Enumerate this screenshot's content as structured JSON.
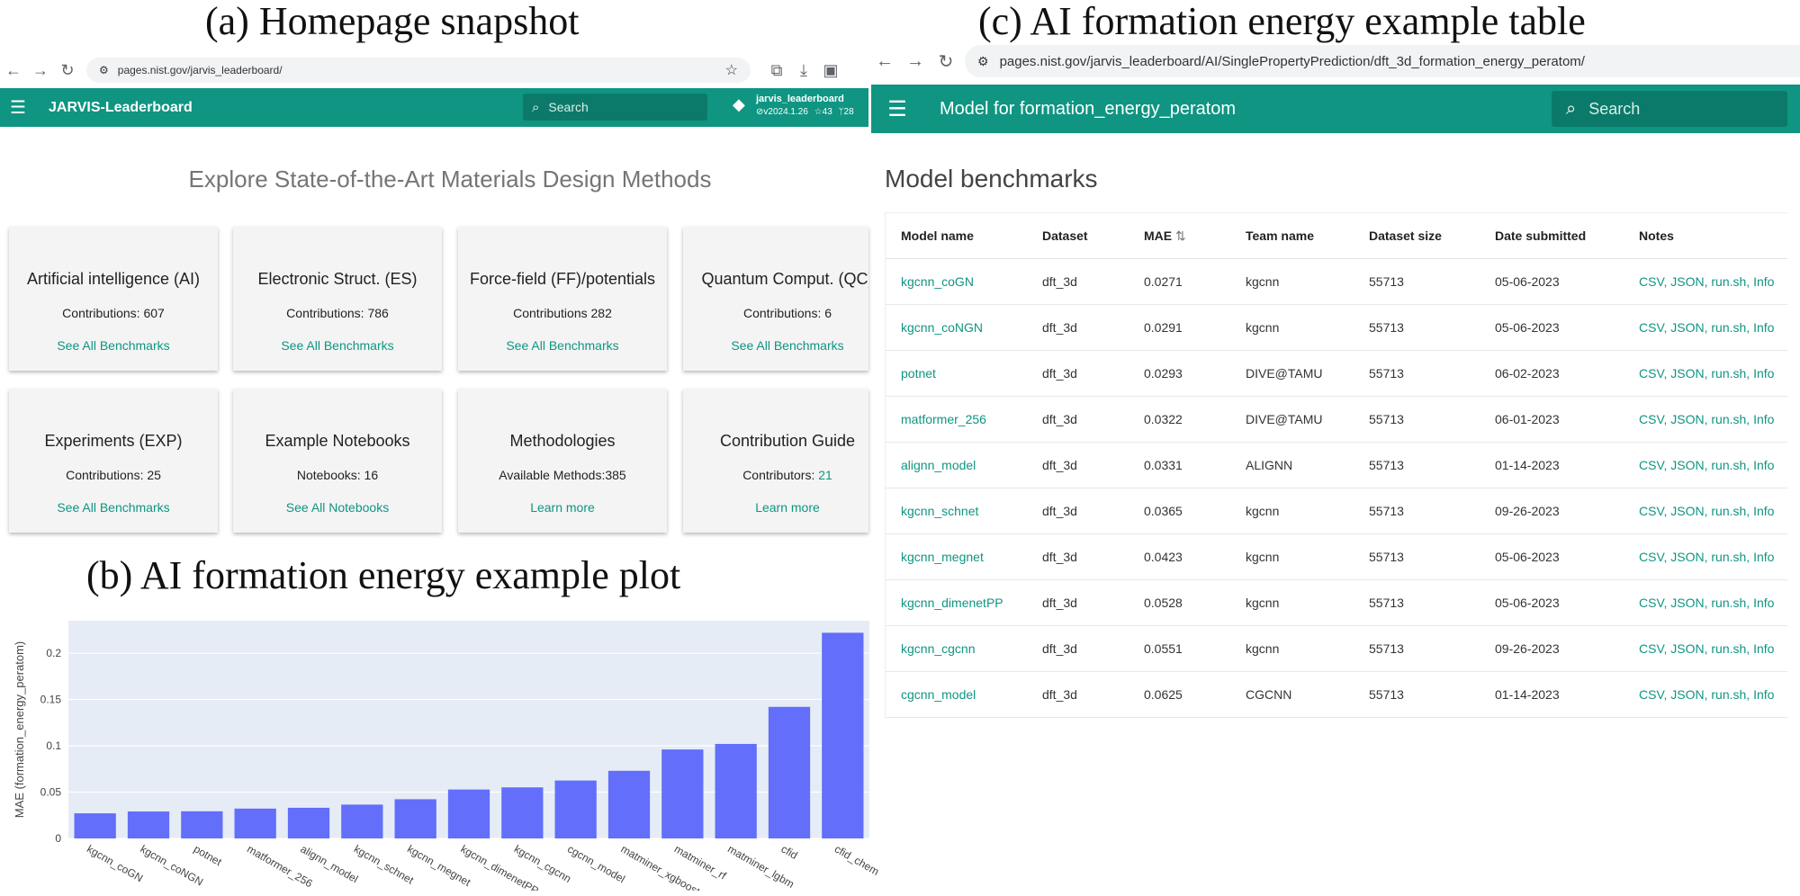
{
  "titles": {
    "a": "(a) Homepage snapshot",
    "b": "(b) AI formation energy example plot",
    "c": "(c) AI formation energy example table"
  },
  "left_browser": {
    "url": "pages.nist.gov/jarvis_leaderboard/",
    "app_title": "JARVIS-Leaderboard",
    "search_placeholder": "Search",
    "repo_name": "jarvis_leaderboard",
    "repo_version": "v2024.1.26",
    "repo_stars": "43",
    "repo_forks": "28",
    "headline": "Explore State-of-the-Art Materials Design Methods",
    "cards": [
      {
        "title": "Artificial intelligence (AI)",
        "count": "Contributions: 607",
        "link": "See All Benchmarks"
      },
      {
        "title": "Electronic Struct. (ES)",
        "count": "Contributions: 786",
        "link": "See All Benchmarks"
      },
      {
        "title": "Force-field (FF)/potentials",
        "count": "Contributions 282",
        "link": "See All Benchmarks"
      },
      {
        "title": "Quantum Comput. (QC)",
        "count": "Contributions: 6",
        "link": "See All Benchmarks"
      },
      {
        "title": "Experiments (EXP)",
        "count": "Contributions: 25",
        "link": "See All Benchmarks"
      },
      {
        "title": "Example Notebooks",
        "count": "Notebooks: 16",
        "link": "See All Notebooks"
      },
      {
        "title": "Methodologies",
        "count": "Available Methods:385",
        "link": "Learn more"
      },
      {
        "title": "Contribution Guide",
        "count": "Contributors: ",
        "count_link": "21",
        "link": "Learn more"
      }
    ]
  },
  "right_browser": {
    "url": "pages.nist.gov/jarvis_leaderboard/AI/SinglePropertyPrediction/dft_3d_formation_energy_peratom/",
    "app_title": "Model for formation_energy_peratom",
    "search_placeholder": "Search",
    "section_title": "Model benchmarks",
    "columns": [
      "Model name",
      "Dataset",
      "MAE",
      "Team name",
      "Dataset size",
      "Date submitted",
      "Notes"
    ],
    "sort_icon": "⇅",
    "rows": [
      {
        "model": "kgcnn_coGN",
        "dataset": "dft_3d",
        "mae": "0.0271",
        "team": "kgcnn",
        "size": "55713",
        "date": "05-06-2023",
        "notes": "CSV, JSON, run.sh, Info"
      },
      {
        "model": "kgcnn_coNGN",
        "dataset": "dft_3d",
        "mae": "0.0291",
        "team": "kgcnn",
        "size": "55713",
        "date": "05-06-2023",
        "notes": "CSV, JSON, run.sh, Info"
      },
      {
        "model": "potnet",
        "dataset": "dft_3d",
        "mae": "0.0293",
        "team": "DIVE@TAMU",
        "size": "55713",
        "date": "06-02-2023",
        "notes": "CSV, JSON, run.sh, Info"
      },
      {
        "model": "matformer_256",
        "dataset": "dft_3d",
        "mae": "0.0322",
        "team": "DIVE@TAMU",
        "size": "55713",
        "date": "06-01-2023",
        "notes": "CSV, JSON, run.sh, Info"
      },
      {
        "model": "alignn_model",
        "dataset": "dft_3d",
        "mae": "0.0331",
        "team": "ALIGNN",
        "size": "55713",
        "date": "01-14-2023",
        "notes": "CSV, JSON, run.sh, Info"
      },
      {
        "model": "kgcnn_schnet",
        "dataset": "dft_3d",
        "mae": "0.0365",
        "team": "kgcnn",
        "size": "55713",
        "date": "09-26-2023",
        "notes": "CSV, JSON, run.sh, Info"
      },
      {
        "model": "kgcnn_megnet",
        "dataset": "dft_3d",
        "mae": "0.0423",
        "team": "kgcnn",
        "size": "55713",
        "date": "05-06-2023",
        "notes": "CSV, JSON, run.sh, Info"
      },
      {
        "model": "kgcnn_dimenetPP",
        "dataset": "dft_3d",
        "mae": "0.0528",
        "team": "kgcnn",
        "size": "55713",
        "date": "05-06-2023",
        "notes": "CSV, JSON, run.sh, Info"
      },
      {
        "model": "kgcnn_cgcnn",
        "dataset": "dft_3d",
        "mae": "0.0551",
        "team": "kgcnn",
        "size": "55713",
        "date": "09-26-2023",
        "notes": "CSV, JSON, run.sh, Info"
      },
      {
        "model": "cgcnn_model",
        "dataset": "dft_3d",
        "mae": "0.0625",
        "team": "CGCNN",
        "size": "55713",
        "date": "01-14-2023",
        "notes": "CSV, JSON, run.sh, Info"
      }
    ]
  },
  "colors": {
    "accent": "#0f9582",
    "bar": "#636efa",
    "plot_bg": "#e5ecf6"
  },
  "chart_data": {
    "type": "bar",
    "categories": [
      "kgcnn_coGN",
      "kgcnn_coNGN",
      "potnet",
      "matformer_256",
      "alignn_model",
      "kgcnn_schnet",
      "kgcnn_megnet",
      "kgcnn_dimenetPP",
      "kgcnn_cgcnn",
      "cgcnn_model",
      "matminer_xgboost",
      "matminer_rf",
      "matminer_lgbm",
      "cfid",
      "cfid_chem"
    ],
    "values": [
      0.0271,
      0.0291,
      0.0293,
      0.0322,
      0.0331,
      0.0365,
      0.0423,
      0.0528,
      0.0551,
      0.0625,
      0.073,
      0.096,
      0.102,
      0.142,
      0.222
    ],
    "ylabel": "MAE (formation_energy_peratom)",
    "ylim": [
      0,
      0.235
    ],
    "yticks": [
      0,
      0.05,
      0.1,
      0.15,
      0.2
    ],
    "ytick_labels": [
      "0",
      "0.05",
      "0.1",
      "0.15",
      "0.2"
    ],
    "grid": true
  }
}
